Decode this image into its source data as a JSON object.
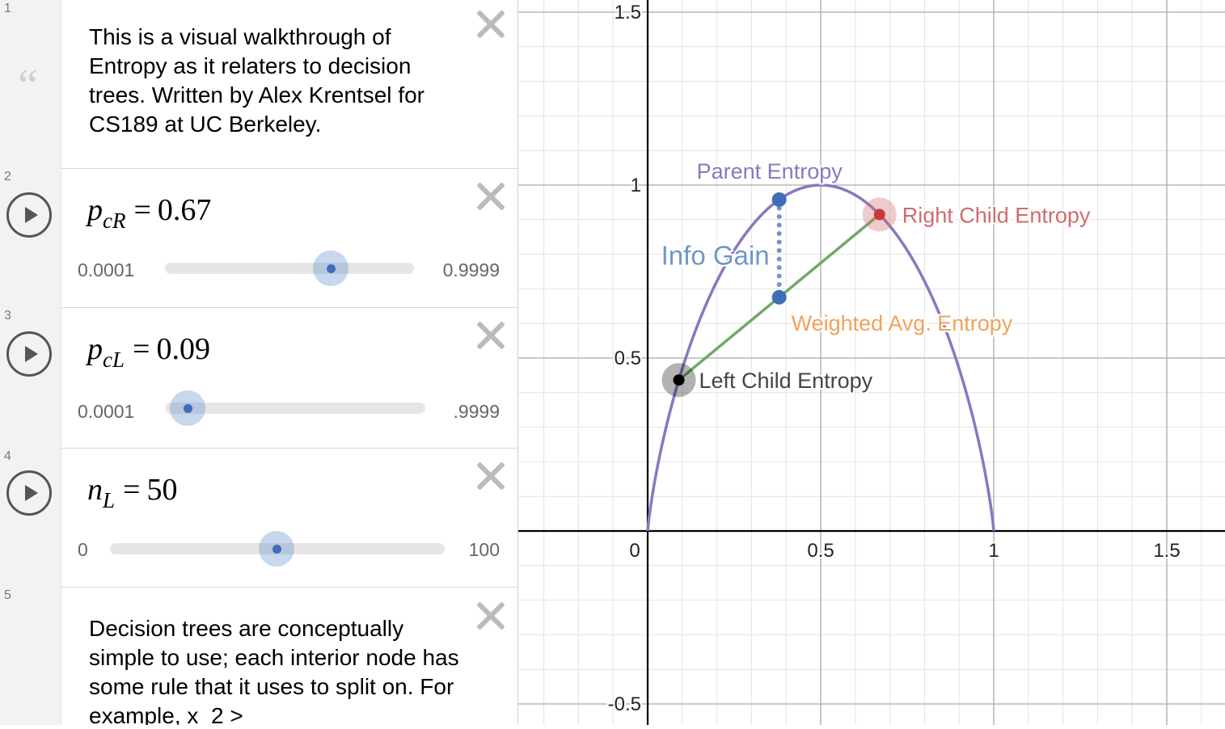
{
  "expressions": [
    {
      "index": "1",
      "type": "note",
      "text": "This is a visual walkthrough of Entropy as it relaters to decision trees. Written by Alex Krentsel for CS189 at UC Berkeley."
    },
    {
      "index": "2",
      "type": "slider",
      "var": "p",
      "sub": "cR",
      "value": "0.67",
      "min": "0.0001",
      "max": "0.9999",
      "fraction": 0.67
    },
    {
      "index": "3",
      "type": "slider",
      "var": "p",
      "sub": "cL",
      "value": "0.09",
      "min": "0.0001",
      "max": ".9999",
      "fraction": 0.09
    },
    {
      "index": "4",
      "type": "slider",
      "var": "n",
      "sub": "L",
      "value": "50",
      "min": "0",
      "max": "100",
      "fraction": 0.5
    },
    {
      "index": "5",
      "type": "note",
      "text": "Decision trees are conceptually simple to use; each interior node has some rule that it uses to split on. For example, x_2 >"
    }
  ],
  "graph": {
    "x_range": [
      -0.37,
      1.67
    ],
    "y_range": [
      -0.56,
      1.54
    ],
    "x_ticks": [
      {
        "v": 0,
        "label": "0"
      },
      {
        "v": 0.5,
        "label": "0.5"
      },
      {
        "v": 1,
        "label": "1"
      },
      {
        "v": 1.5,
        "label": "1.5"
      }
    ],
    "y_ticks": [
      {
        "v": 1.5,
        "label": "1.5"
      },
      {
        "v": 1,
        "label": "1"
      },
      {
        "v": 0.5,
        "label": "0.5"
      },
      {
        "v": -0.5,
        "label": "-0.5"
      }
    ],
    "p_left": 0.09,
    "p_right": 0.67,
    "n_left": 50,
    "labels": {
      "parent": "Parent Entropy",
      "right": "Right Child Entropy",
      "left": "Left Child Entropy",
      "weighted": "Weighted Avg. Entropy",
      "gain": "Info Gain"
    },
    "colors": {
      "curve": "#8a77bf",
      "line": "#6faa65",
      "blue": "#3e6fb5",
      "gain": "#6f96c8",
      "red": "#d06b6b",
      "orange": "#f0a25a",
      "black": "#444444"
    }
  }
}
